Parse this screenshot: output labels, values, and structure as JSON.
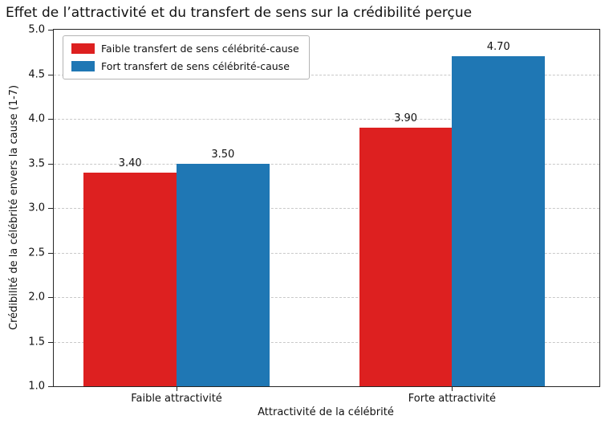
{
  "chart_data": {
    "type": "bar",
    "title": "Effet de l’attractivité et du transfert de sens sur la crédibilité perçue",
    "xlabel": "Attractivité de la célébrité",
    "ylabel": "Crédibilité de la célébrité envers la cause (1-7)",
    "categories": [
      "Faible attractivité",
      "Forte attractivité"
    ],
    "series": [
      {
        "name": "Faible transfert de sens célébrité-cause",
        "color": "#dd2020",
        "values": [
          3.4,
          3.9
        ],
        "labels": [
          "3.40",
          "3.90"
        ]
      },
      {
        "name": "Fort transfert de sens célébrité-cause",
        "color": "#1f77b4",
        "values": [
          3.5,
          4.7
        ],
        "labels": [
          "3.50",
          "4.70"
        ]
      }
    ],
    "ylim": [
      1.0,
      5.0
    ],
    "ytick_step": 0.5,
    "ytick_format_decimals": 1,
    "grid": true,
    "grid_style": "dashed",
    "legend_position": "top-left"
  }
}
